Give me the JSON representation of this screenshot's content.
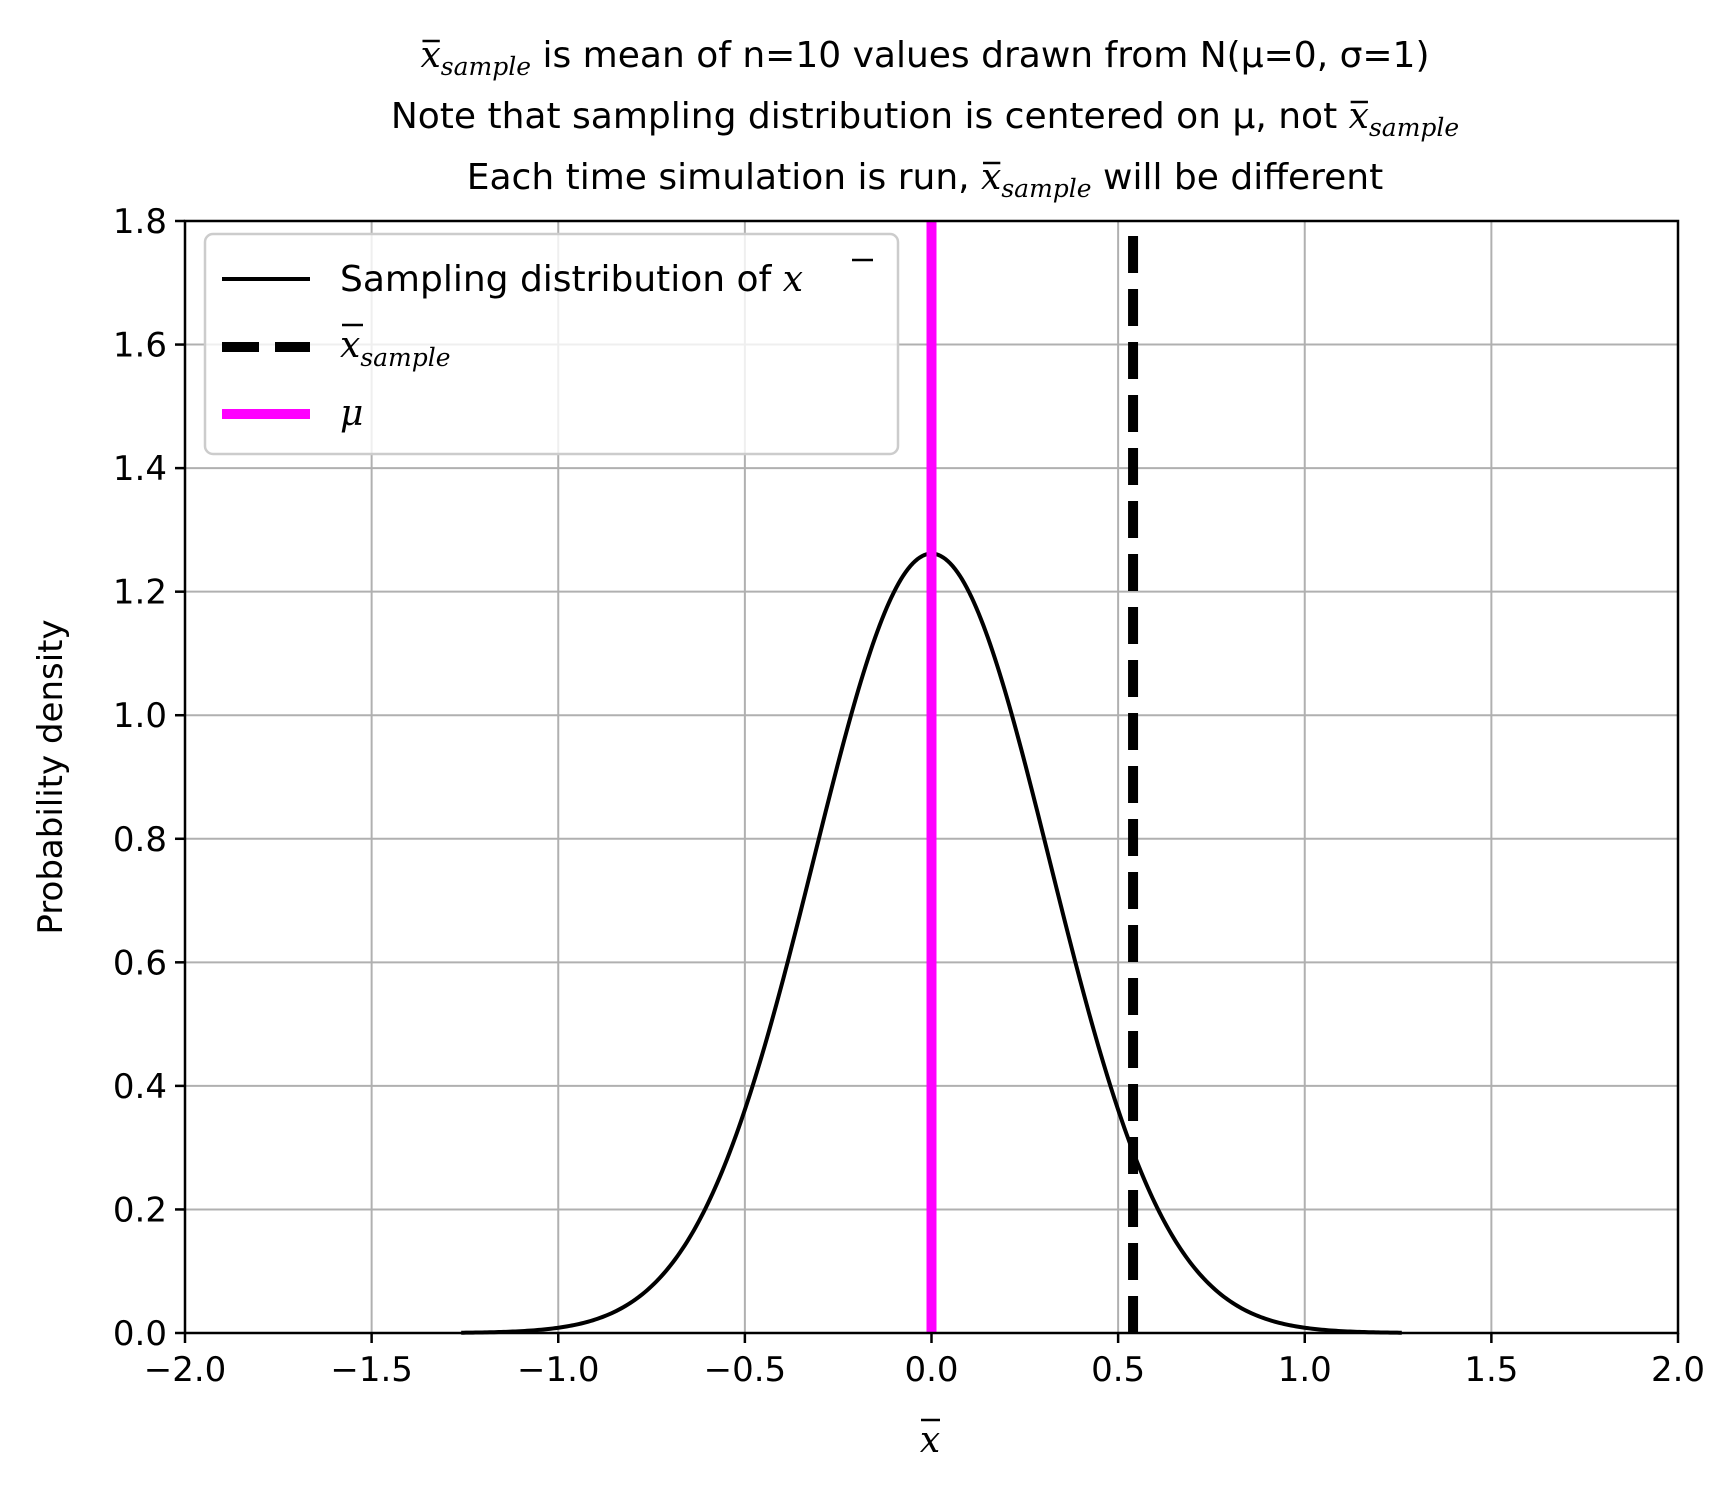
{
  "title": {
    "line1": {
      "pre": "",
      "post": " is mean of n=10 values drawn from N(μ=0, σ=1)"
    },
    "line2": {
      "pre": "Note that sampling distribution is centered on μ, not ",
      "post": ""
    },
    "line3": {
      "pre": "Each time simulation is run, ",
      "post": " will be different"
    }
  },
  "symbols": {
    "xbar": "x",
    "sample_subscript": "sample",
    "mu": "μ"
  },
  "chart_data": {
    "type": "line",
    "title": "x̄_sample is mean of n=10 values drawn from N(μ=0, σ=1) / Note that sampling distribution is centered on μ, not x̄_sample / Each time simulation is run, x̄_sample will be different",
    "xlabel": "x̄",
    "ylabel": "Probability density",
    "xlim": [
      -2.0,
      2.0
    ],
    "ylim": [
      0.0,
      1.8
    ],
    "xticks": [
      -2.0,
      -1.5,
      -1.0,
      -0.5,
      0.0,
      0.5,
      1.0,
      1.5,
      2.0
    ],
    "xtick_labels": [
      "−2.0",
      "−1.5",
      "−1.0",
      "−0.5",
      "0.0",
      "0.5",
      "1.0",
      "1.5",
      "2.0"
    ],
    "yticks": [
      0.0,
      0.2,
      0.4,
      0.6,
      0.8,
      1.0,
      1.2,
      1.4,
      1.6,
      1.8
    ],
    "ytick_labels": [
      "0.0",
      "0.2",
      "0.4",
      "0.6",
      "0.8",
      "1.0",
      "1.2",
      "1.4",
      "1.6",
      "1.8"
    ],
    "grid": true,
    "legend_position": "top-left",
    "series": [
      {
        "name": "Sampling distribution of x̄",
        "style": "solid",
        "color": "#000000",
        "x": [
          -1.26,
          -1.2,
          -1.1,
          -1.0,
          -0.9,
          -0.8,
          -0.7,
          -0.6,
          -0.5,
          -0.4,
          -0.3,
          -0.2,
          -0.1,
          0.0,
          0.1,
          0.2,
          0.3,
          0.4,
          0.5,
          0.6,
          0.7,
          0.8,
          0.9,
          1.0,
          1.1,
          1.2,
          1.26
        ],
        "y": [
          0.0006,
          0.0009,
          0.003,
          0.0085,
          0.0221,
          0.0517,
          0.1089,
          0.2068,
          0.3543,
          0.5476,
          0.7633,
          0.9599,
          1.0886,
          1.2616,
          1.0886,
          0.9599,
          0.7633,
          0.5476,
          0.3543,
          0.2068,
          0.1089,
          0.0517,
          0.0221,
          0.0085,
          0.003,
          0.0009,
          0.0006
        ]
      },
      {
        "name": "x̄_sample",
        "style": "dashed",
        "color": "#000000",
        "x_value": 0.54
      },
      {
        "name": "μ",
        "style": "solid",
        "color": "#ff00ff",
        "x_value": 0.0
      }
    ]
  }
}
